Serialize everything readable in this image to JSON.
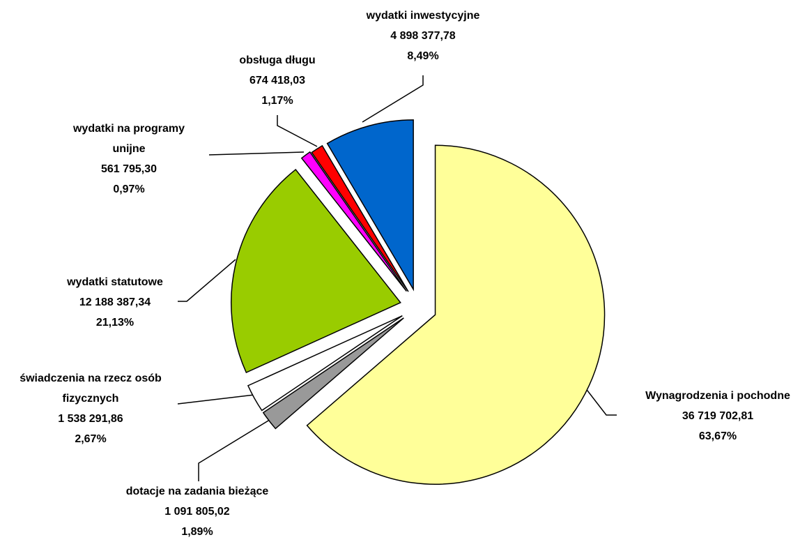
{
  "chart_data": {
    "type": "pie",
    "categories": [
      "Wynagrodzenia i pochodne",
      "dotacje na zadania bieżące",
      "świadczenia na rzecz osób fizycznych",
      "wydatki statutowe",
      "wydatki na programy unijne",
      "obsługa długu",
      "wydatki inwestycyjne"
    ],
    "amounts": [
      "36 719 702,81",
      "1 091 805,02",
      "1 538 291,86",
      "12 188 387,34",
      "561 795,30",
      "674 418,03",
      "4 898 377,78"
    ],
    "values": [
      63.67,
      1.89,
      2.67,
      21.13,
      0.97,
      1.17,
      8.49
    ],
    "value_labels": [
      "63,67%",
      "1,89%",
      "2,67%",
      "21,13%",
      "0,97%",
      "1,17%",
      "8,49%"
    ],
    "colors": [
      "#ffff99",
      "#999999",
      "#ffffff",
      "#99cc00",
      "#ff00ff",
      "#ff0000",
      "#0066cc"
    ]
  }
}
